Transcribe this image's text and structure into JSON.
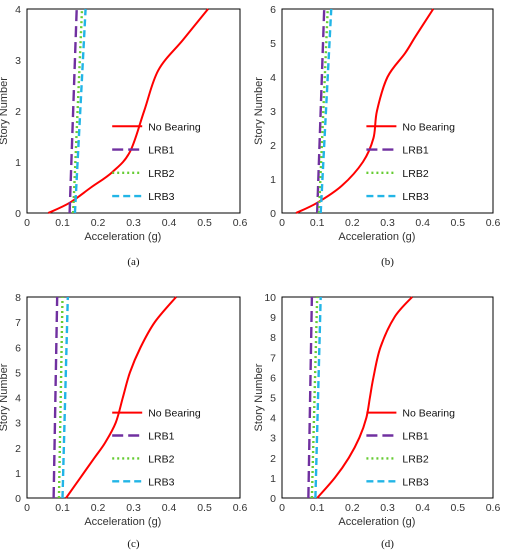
{
  "chart_data": [
    {
      "type": "line",
      "panel_label": "(a)",
      "xlabel": "Acceleration (g)",
      "ylabel": "Story Number",
      "xlim": [
        0,
        0.6
      ],
      "ylim": [
        0,
        4
      ],
      "xticks": [
        "0",
        "0.1",
        "0.2",
        "0.3",
        "0.4",
        "0.5",
        "0.6"
      ],
      "yticks": [
        "0",
        "1",
        "2",
        "3",
        "4"
      ],
      "legend_position": "right",
      "series": [
        {
          "name": "No Bearing",
          "x": [
            0.06,
            0.12,
            0.18,
            0.24,
            0.29,
            0.33,
            0.37,
            0.44,
            0.51
          ],
          "y": [
            0,
            0.2,
            0.5,
            0.8,
            1.2,
            2.0,
            2.8,
            3.4,
            4.0
          ]
        },
        {
          "name": "LRB1",
          "x": [
            0.12,
            0.14
          ],
          "y": [
            0,
            4
          ]
        },
        {
          "name": "LRB2",
          "x": [
            0.13,
            0.155
          ],
          "y": [
            0,
            4
          ]
        },
        {
          "name": "LRB3",
          "x": [
            0.135,
            0.165
          ],
          "y": [
            0,
            4
          ]
        }
      ]
    },
    {
      "type": "line",
      "panel_label": "(b)",
      "xlabel": "Acceleration (g)",
      "ylabel": "Story Number",
      "xlim": [
        0,
        0.6
      ],
      "ylim": [
        0,
        6
      ],
      "xticks": [
        "0",
        "0.1",
        "0.2",
        "0.3",
        "0.4",
        "0.5",
        "0.6"
      ],
      "yticks": [
        "0",
        "1",
        "2",
        "3",
        "4",
        "5",
        "6"
      ],
      "legend_position": "right",
      "series": [
        {
          "name": "No Bearing",
          "x": [
            0.04,
            0.1,
            0.17,
            0.23,
            0.26,
            0.27,
            0.3,
            0.35,
            0.38,
            0.43
          ],
          "y": [
            0,
            0.3,
            0.8,
            1.5,
            2.2,
            3.0,
            4.0,
            4.7,
            5.2,
            6.0
          ]
        },
        {
          "name": "LRB1",
          "x": [
            0.1,
            0.12
          ],
          "y": [
            0,
            6
          ]
        },
        {
          "name": "LRB2",
          "x": [
            0.105,
            0.13
          ],
          "y": [
            0,
            6
          ]
        },
        {
          "name": "LRB3",
          "x": [
            0.11,
            0.14
          ],
          "y": [
            0,
            6
          ]
        }
      ]
    },
    {
      "type": "line",
      "panel_label": "(c)",
      "xlabel": "Acceleration (g)",
      "ylabel": "Story Number",
      "xlim": [
        0,
        0.6
      ],
      "ylim": [
        0,
        8
      ],
      "xticks": [
        "0",
        "0.1",
        "0.2",
        "0.3",
        "0.4",
        "0.5",
        "0.6"
      ],
      "yticks": [
        "0",
        "1",
        "2",
        "3",
        "4",
        "5",
        "6",
        "7",
        "8"
      ],
      "legend_position": "right",
      "series": [
        {
          "name": "No Bearing",
          "x": [
            0.11,
            0.15,
            0.19,
            0.22,
            0.25,
            0.27,
            0.29,
            0.32,
            0.36,
            0.42
          ],
          "y": [
            0,
            0.8,
            1.6,
            2.2,
            3.0,
            4.0,
            5.0,
            6.0,
            7.0,
            8.0
          ]
        },
        {
          "name": "LRB1",
          "x": [
            0.075,
            0.085
          ],
          "y": [
            0,
            8
          ]
        },
        {
          "name": "LRB2",
          "x": [
            0.09,
            0.1
          ],
          "y": [
            0,
            8
          ]
        },
        {
          "name": "LRB3",
          "x": [
            0.1,
            0.115
          ],
          "y": [
            0,
            8
          ]
        }
      ]
    },
    {
      "type": "line",
      "panel_label": "(d)",
      "xlabel": "Acceleration (g)",
      "ylabel": "Story Number",
      "xlim": [
        0,
        0.6
      ],
      "ylim": [
        0,
        10
      ],
      "xticks": [
        "0",
        "0.1",
        "0.2",
        "0.3",
        "0.4",
        "0.5",
        "0.6"
      ],
      "yticks": [
        "0",
        "1",
        "2",
        "3",
        "4",
        "5",
        "6",
        "7",
        "8",
        "9",
        "10"
      ],
      "legend_position": "right",
      "series": [
        {
          "name": "No Bearing",
          "x": [
            0.1,
            0.15,
            0.19,
            0.22,
            0.24,
            0.25,
            0.26,
            0.28,
            0.32,
            0.37
          ],
          "y": [
            0,
            1.0,
            2.0,
            3.0,
            4.0,
            5.0,
            6.0,
            7.5,
            9.0,
            10.0
          ]
        },
        {
          "name": "LRB1",
          "x": [
            0.075,
            0.085
          ],
          "y": [
            0,
            10
          ]
        },
        {
          "name": "LRB2",
          "x": [
            0.085,
            0.1
          ],
          "y": [
            0,
            10
          ]
        },
        {
          "name": "LRB3",
          "x": [
            0.095,
            0.11
          ],
          "y": [
            0,
            10
          ]
        }
      ]
    }
  ],
  "series_colors": {
    "No Bearing": "#ff0000",
    "LRB1": "#7030a0",
    "LRB2": "#66cc33",
    "LRB3": "#22b5e6"
  }
}
